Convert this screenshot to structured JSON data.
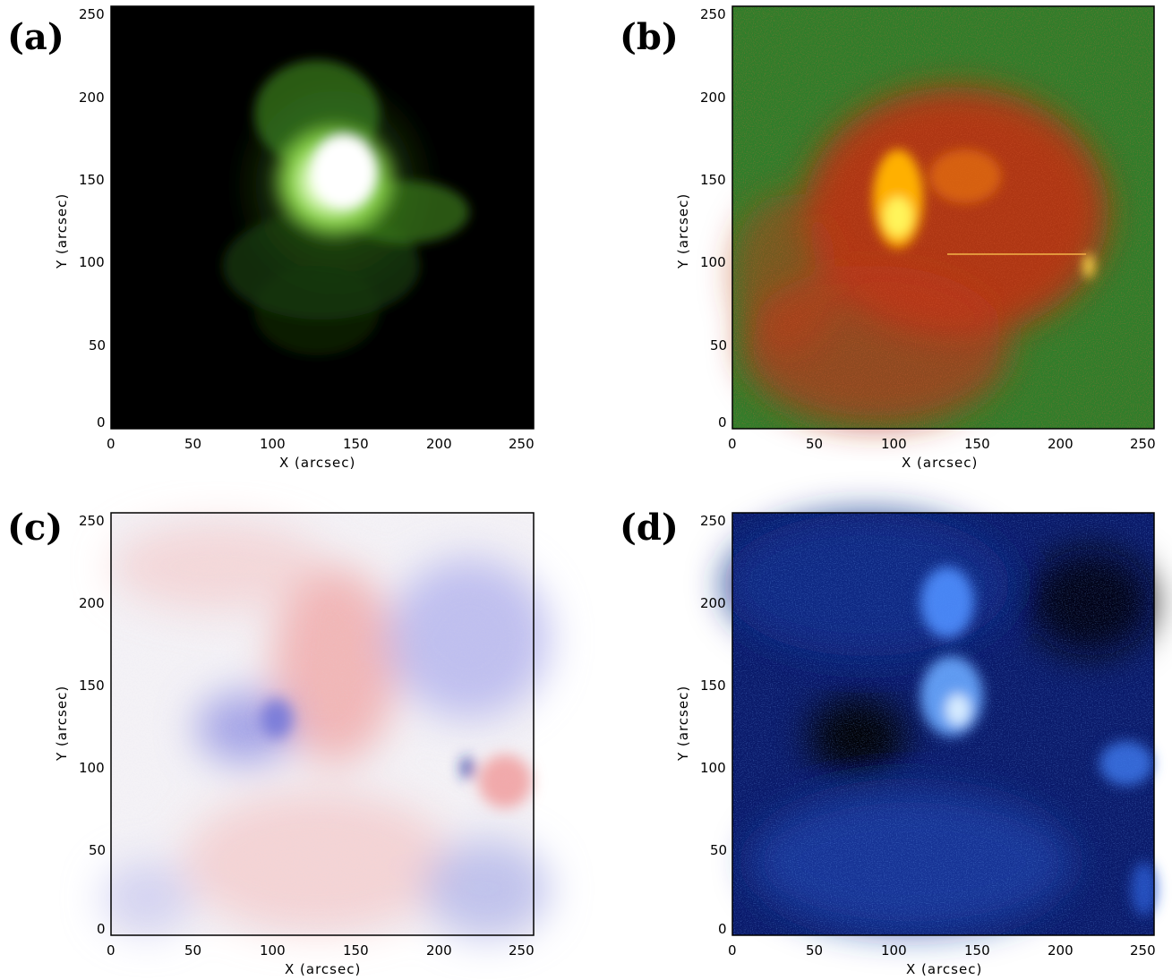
{
  "figure": {
    "panels": [
      {
        "id": "a",
        "label": "(a)",
        "x_axis_label": "X   (arcsec)",
        "y_axis_label": "Y   (arcsec)",
        "x_ticks": [
          "0",
          "50",
          "100",
          "150",
          "200",
          "250"
        ],
        "y_ticks": [
          "0",
          "50",
          "100",
          "150",
          "200",
          "250"
        ],
        "colormap": "green",
        "background_color": "#000000",
        "accent_color": "#5aa82a"
      },
      {
        "id": "b",
        "label": "(b)",
        "x_axis_label": "X   (arcsec)",
        "y_axis_label": "Y   (arcsec)",
        "x_ticks": [
          "0",
          "50",
          "100",
          "150",
          "200",
          "250"
        ],
        "y_ticks": [
          "0",
          "50",
          "100",
          "150",
          "200",
          "250"
        ],
        "colormap": "red-green",
        "background_color": "#2f7d2a",
        "accent_color": "#d12b10"
      },
      {
        "id": "c",
        "label": "(c)",
        "x_axis_label": "X (arcsec)",
        "y_axis_label": "Y (arcsec)",
        "x_ticks": [
          "0",
          "50",
          "100",
          "150",
          "200",
          "250"
        ],
        "y_ticks": [
          "0",
          "50",
          "100",
          "150",
          "200",
          "250"
        ],
        "colormap": "red-white-blue",
        "background_color": "#f4f2f6",
        "accent_color": "#6c72d8"
      },
      {
        "id": "d",
        "label": "(d)",
        "x_axis_label": "X (arcsec)",
        "y_axis_label": "Y (arcsec)",
        "x_ticks": [
          "0",
          "50",
          "100",
          "150",
          "200",
          "250"
        ],
        "y_ticks": [
          "0",
          "50",
          "100",
          "150",
          "200",
          "250"
        ],
        "colormap": "blue",
        "background_color": "#0a1a6a",
        "accent_color": "#4f8fff"
      }
    ]
  }
}
